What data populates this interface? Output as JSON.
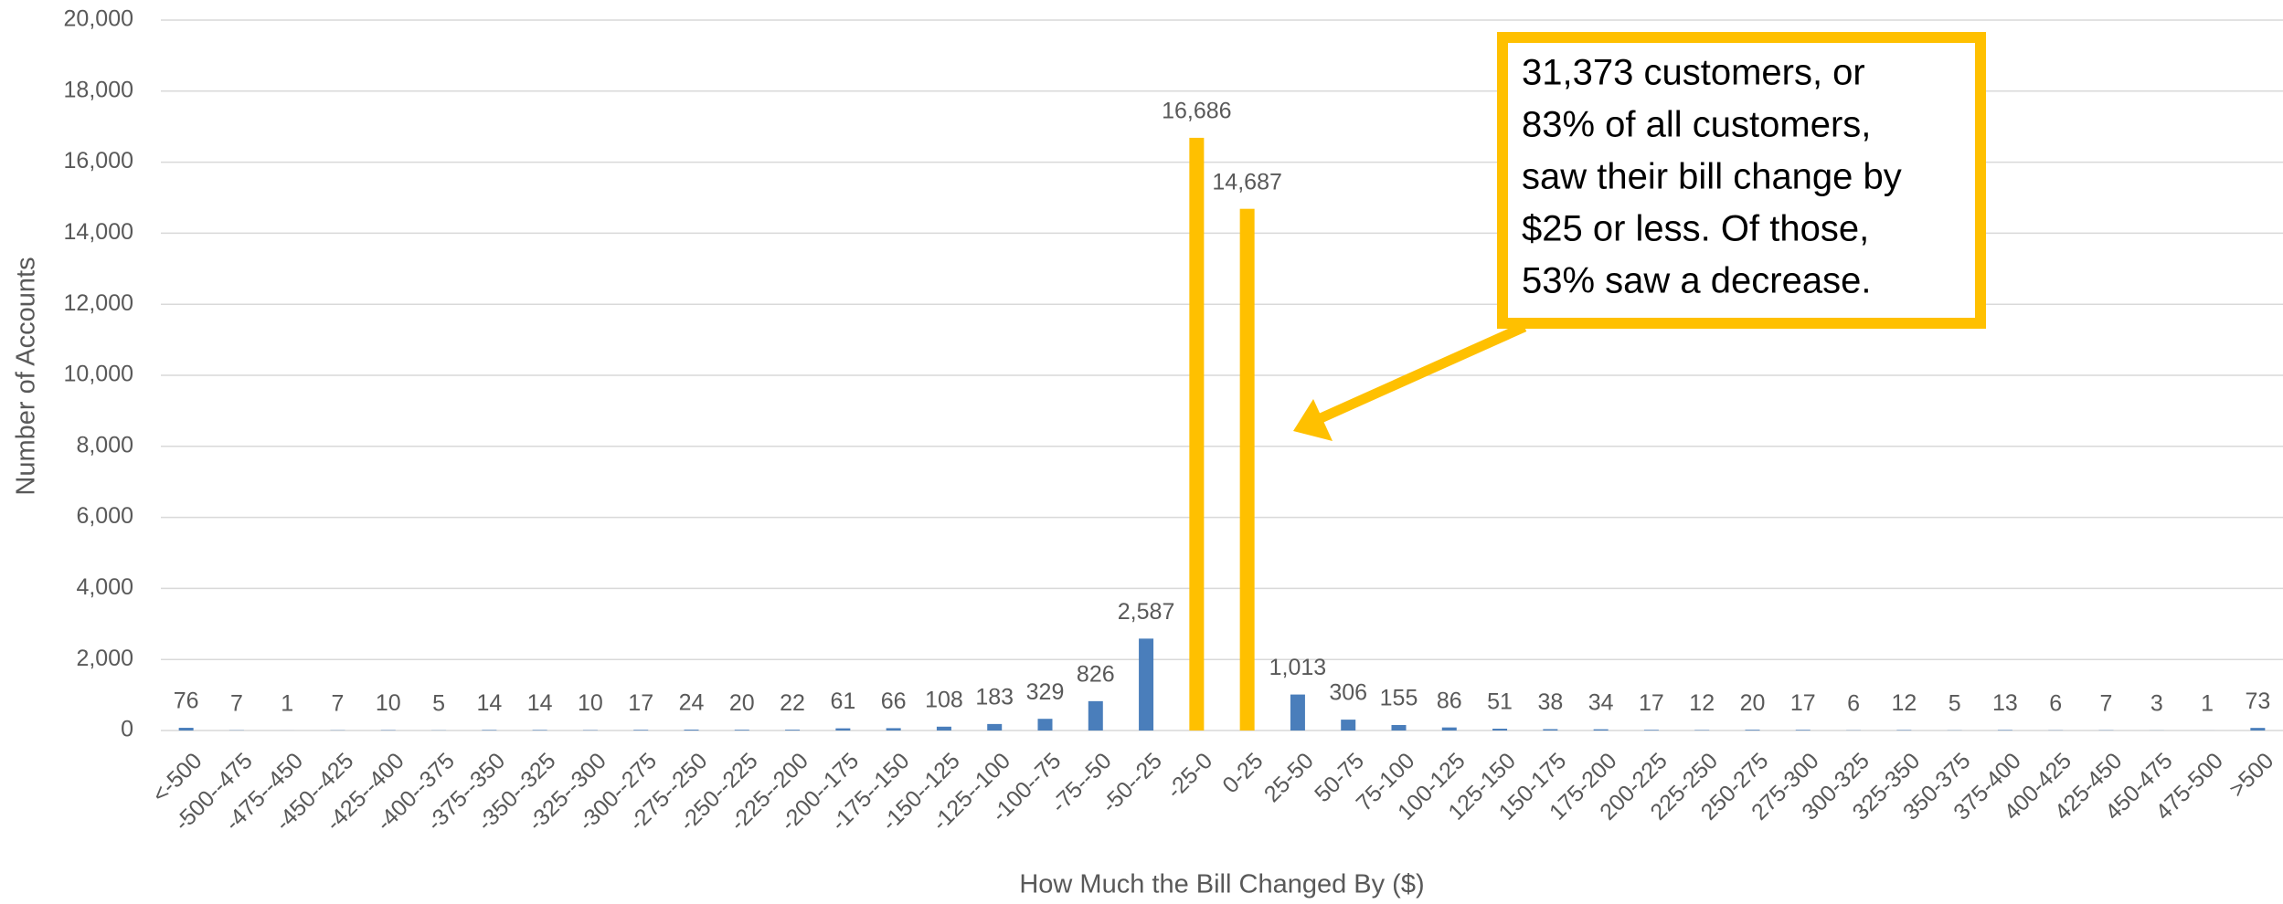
{
  "chart_data": {
    "type": "bar",
    "x_label": "How Much the Bill Changed By ($)",
    "y_label": "Number of Accounts",
    "categories": [
      "<-500",
      "-500--475",
      "-475--450",
      "-450--425",
      "-425--400",
      "-400--375",
      "-375--350",
      "-350--325",
      "-325--300",
      "-300--275",
      "-275--250",
      "-250--225",
      "-225--200",
      "-200--175",
      "-175--150",
      "-150--125",
      "-125--100",
      "-100--75",
      "-75--50",
      "-50--25",
      "-25-0",
      "0-25",
      "25-50",
      "50-75",
      "75-100",
      "100-125",
      "125-150",
      "150-175",
      "175-200",
      "200-225",
      "225-250",
      "250-275",
      "275-300",
      "300-325",
      "325-350",
      "350-375",
      "375-400",
      "400-425",
      "425-450",
      "450-475",
      "475-500",
      ">500"
    ],
    "values": [
      76,
      7,
      1,
      7,
      10,
      5,
      14,
      14,
      10,
      17,
      24,
      20,
      22,
      61,
      66,
      108,
      183,
      329,
      826,
      2587,
      16686,
      14687,
      1013,
      306,
      155,
      86,
      51,
      38,
      34,
      17,
      12,
      20,
      17,
      6,
      12,
      5,
      13,
      6,
      7,
      3,
      1,
      73
    ],
    "value_labels": [
      "76",
      "7",
      "1",
      "7",
      "10",
      "5",
      "14",
      "14",
      "10",
      "17",
      "24",
      "20",
      "22",
      "61",
      "66",
      "108",
      "183",
      "329",
      "826",
      "2,587",
      "16,686",
      "14,687",
      "1,013",
      "306",
      "155",
      "86",
      "51",
      "38",
      "34",
      "17",
      "12",
      "20",
      "17",
      "6",
      "12",
      "5",
      "13",
      "6",
      "7",
      "3",
      "1",
      "73"
    ],
    "colors": [
      "#4a7ebb",
      "#4a7ebb",
      "#4a7ebb",
      "#4a7ebb",
      "#4a7ebb",
      "#4a7ebb",
      "#4a7ebb",
      "#4a7ebb",
      "#4a7ebb",
      "#4a7ebb",
      "#4a7ebb",
      "#4a7ebb",
      "#4a7ebb",
      "#4a7ebb",
      "#4a7ebb",
      "#4a7ebb",
      "#4a7ebb",
      "#4a7ebb",
      "#4a7ebb",
      "#4a7ebb",
      "#ffc000",
      "#ffc000",
      "#4a7ebb",
      "#4a7ebb",
      "#4a7ebb",
      "#4a7ebb",
      "#4a7ebb",
      "#4a7ebb",
      "#4a7ebb",
      "#4a7ebb",
      "#4a7ebb",
      "#4a7ebb",
      "#4a7ebb",
      "#4a7ebb",
      "#4a7ebb",
      "#4a7ebb",
      "#4a7ebb",
      "#4a7ebb",
      "#4a7ebb",
      "#4a7ebb",
      "#4a7ebb",
      "#4a7ebb"
    ],
    "ylim": [
      0,
      20000
    ],
    "yticks": [
      0,
      {
        "value": 2000,
        "label": "2,000"
      },
      {
        "value": 4000,
        "label": "4,000"
      },
      {
        "value": 6000,
        "label": "6,000"
      },
      {
        "value": 8000,
        "label": "8,000"
      },
      {
        "value": 10000,
        "label": "10,000"
      },
      {
        "value": 12000,
        "label": "12,000"
      },
      {
        "value": 14000,
        "label": "14,000"
      },
      {
        "value": 16000,
        "label": "16,000"
      },
      {
        "value": 18000,
        "label": "18,000"
      },
      {
        "value": 20000,
        "label": "20,000"
      }
    ],
    "grid": true,
    "annotation": [
      "31,373 customers, or",
      "83% of all customers,",
      "saw their bill change by",
      "$25 or less. Of those,",
      "53% saw a decrease."
    ],
    "annotation_color": "#ffc000"
  }
}
